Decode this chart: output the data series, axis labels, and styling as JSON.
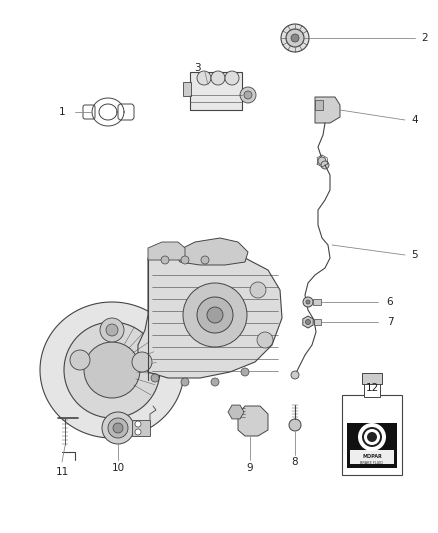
{
  "background_color": "#ffffff",
  "line_color": "#444444",
  "label_color": "#222222",
  "leader_color": "#888888",
  "label_fontsize": 7.5,
  "fig_width": 4.38,
  "fig_height": 5.33,
  "dpi": 100,
  "coord_system": "pixels_438x533"
}
